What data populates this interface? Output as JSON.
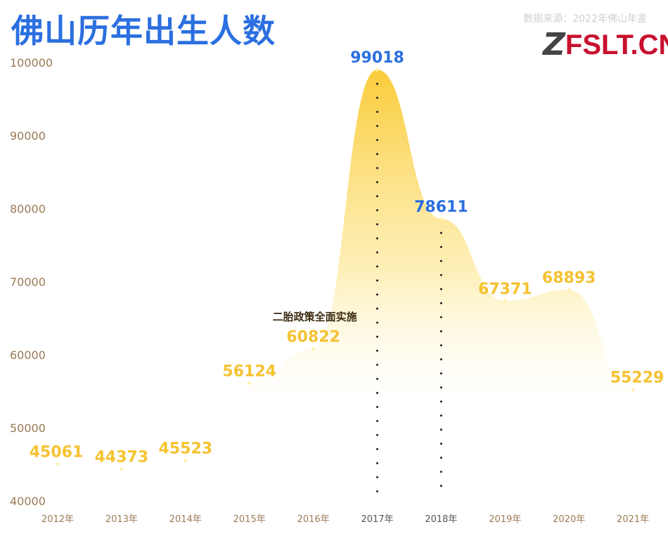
{
  "title": "佛山历年出生人数",
  "source": "数据来源：2022年佛山年鉴",
  "logo": "FSLT.CN",
  "colors": {
    "title": "#2b6fe0",
    "label_yellow": "#f5c231",
    "label_blue": "#2b6fe0",
    "area": "#fbd54a",
    "axis_text": "#9a7a55"
  },
  "chart_data": {
    "type": "area",
    "categories": [
      "2012年",
      "2013年",
      "2014年",
      "2015年",
      "2016年",
      "2017年",
      "2018年",
      "2019年",
      "2020年",
      "2021年"
    ],
    "values": [
      45061,
      44373,
      45523,
      56124,
      60822,
      99018,
      78611,
      67371,
      68893,
      55229
    ],
    "highlight": [
      "2017年",
      "2018年"
    ],
    "yticks": [
      40000,
      50000,
      60000,
      70000,
      80000,
      90000,
      100000
    ],
    "ylim": [
      40000,
      100000
    ],
    "annotation": {
      "text": "二胎政策全面实施",
      "at": "2016年"
    },
    "grid": false
  }
}
